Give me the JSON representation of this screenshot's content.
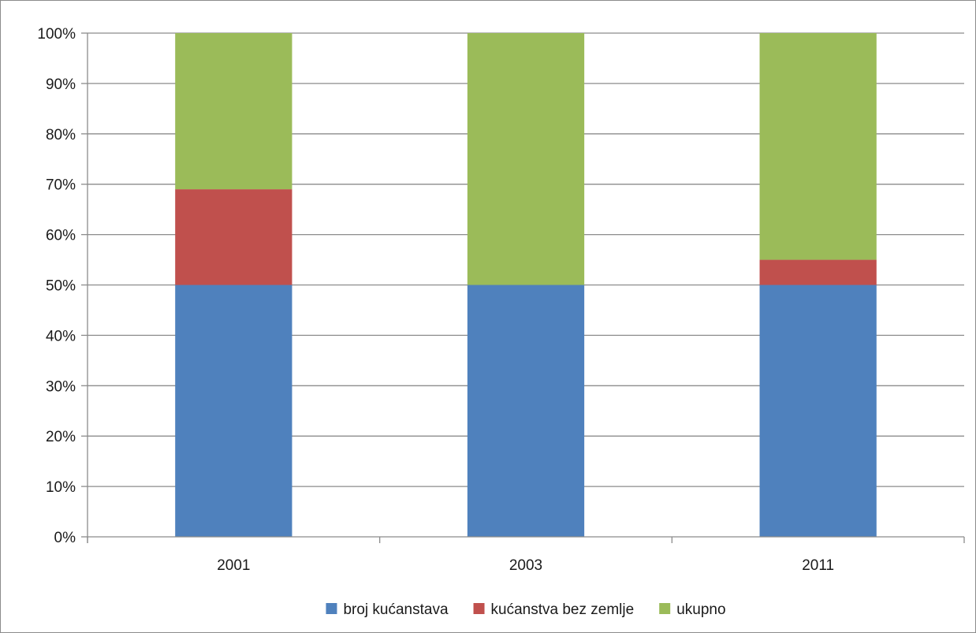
{
  "chart_data": {
    "type": "bar",
    "stacked": true,
    "percent_stacked": true,
    "categories": [
      "2001",
      "2003",
      "2011"
    ],
    "series": [
      {
        "name": "broj kućanstava",
        "color": "#4f81bd",
        "values": [
          50,
          50,
          50
        ]
      },
      {
        "name": "kućanstva bez zemlje",
        "color": "#c0504d",
        "values": [
          19,
          0,
          5
        ]
      },
      {
        "name": "ukupno",
        "color": "#9bbb59",
        "values": [
          31,
          50,
          45
        ]
      }
    ],
    "title": "",
    "xlabel": "",
    "ylabel": "",
    "ylim": [
      0,
      100
    ],
    "yticks": [
      "0%",
      "10%",
      "20%",
      "30%",
      "40%",
      "50%",
      "60%",
      "70%",
      "80%",
      "90%",
      "100%"
    ],
    "grid": true,
    "legend_position": "bottom"
  }
}
